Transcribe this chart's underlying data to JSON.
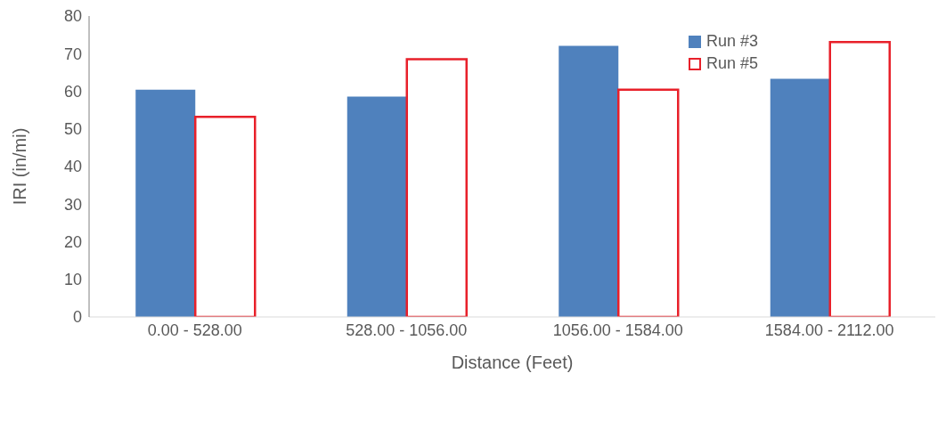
{
  "chart_data": {
    "type": "bar",
    "xlabel": "Distance (Feet)",
    "ylabel": "IRI (in/mi)",
    "categories": [
      "0.00 - 528.00",
      "528.00 - 1056.00",
      "1056.00 - 1584.00",
      "1584.00 - 2112.00"
    ],
    "series": [
      {
        "name": "Run #3",
        "color": "#4f81bd",
        "values": [
          60.4,
          58.6,
          72.1,
          63.3
        ]
      },
      {
        "name": "Run #5",
        "color": "#e8202a",
        "values": [
          53.2,
          68.5,
          60.4,
          73.1
        ]
      }
    ],
    "ylim": [
      0,
      80
    ],
    "yticks": [
      0,
      10,
      20,
      30,
      40,
      50,
      60,
      70,
      80
    ],
    "grid": false,
    "legend": "top right"
  }
}
